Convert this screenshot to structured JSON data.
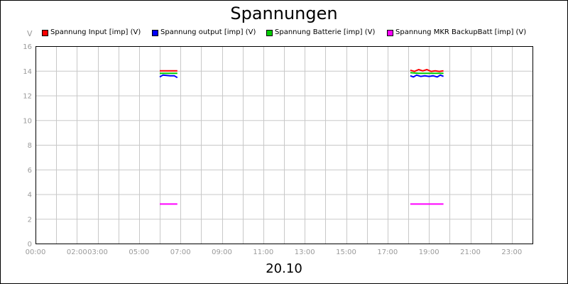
{
  "chart_data": {
    "type": "line",
    "title": "Spannungen",
    "ylabel": "V",
    "xlabel": "20.10",
    "ylim": [
      0,
      16
    ],
    "xlim_hours": [
      0,
      24
    ],
    "grid": true,
    "legend_position": "top",
    "y_ticks": [
      "0",
      "2",
      "4",
      "6",
      "8",
      "10",
      "12",
      "14",
      "16"
    ],
    "x_ticks": [
      {
        "label": "00:00",
        "hour": 0
      },
      {
        "label": "02:00",
        "hour": 2
      },
      {
        "label": "03:00",
        "hour": 3
      },
      {
        "label": "05:00",
        "hour": 5
      },
      {
        "label": "07:00",
        "hour": 7
      },
      {
        "label": "09:00",
        "hour": 9
      },
      {
        "label": "11:00",
        "hour": 11
      },
      {
        "label": "13:00",
        "hour": 13
      },
      {
        "label": "15:00",
        "hour": 15
      },
      {
        "label": "17:00",
        "hour": 17
      },
      {
        "label": "19:00",
        "hour": 19
      },
      {
        "label": "21:00",
        "hour": 21
      },
      {
        "label": "23:00",
        "hour": 23
      }
    ],
    "x_gridlines_hours": [
      1,
      2,
      3,
      4,
      5,
      6,
      7,
      8,
      9,
      10,
      11,
      12,
      13,
      14,
      15,
      16,
      17,
      18,
      19,
      20,
      21,
      22,
      23
    ],
    "series": [
      {
        "name": "Spannung Input [imp] (V)",
        "color": "#ff0000",
        "segments": [
          [
            [
              6.0,
              14.0
            ],
            [
              6.4,
              14.0
            ],
            [
              6.85,
              14.0
            ]
          ],
          [
            [
              18.1,
              14.05
            ],
            [
              18.3,
              13.95
            ],
            [
              18.5,
              14.1
            ],
            [
              18.7,
              14.0
            ],
            [
              18.9,
              14.1
            ],
            [
              19.1,
              13.95
            ],
            [
              19.3,
              14.0
            ],
            [
              19.5,
              13.95
            ],
            [
              19.7,
              14.0
            ]
          ]
        ]
      },
      {
        "name": "Spannung output [imp] (V)",
        "color": "#0000ff",
        "segments": [
          [
            [
              6.0,
              13.5
            ],
            [
              6.15,
              13.65
            ],
            [
              6.5,
              13.6
            ],
            [
              6.7,
              13.6
            ],
            [
              6.85,
              13.45
            ]
          ],
          [
            [
              18.1,
              13.6
            ],
            [
              18.25,
              13.5
            ],
            [
              18.4,
              13.65
            ],
            [
              18.6,
              13.55
            ],
            [
              18.8,
              13.6
            ],
            [
              19.0,
              13.55
            ],
            [
              19.2,
              13.6
            ],
            [
              19.4,
              13.5
            ],
            [
              19.55,
              13.65
            ],
            [
              19.7,
              13.55
            ]
          ]
        ]
      },
      {
        "name": "Spannung Batterie [imp] (V)",
        "color": "#00cc00",
        "segments": [
          [
            [
              6.0,
              13.8
            ],
            [
              6.85,
              13.8
            ]
          ],
          [
            [
              18.1,
              13.85
            ],
            [
              18.5,
              13.8
            ],
            [
              19.0,
              13.8
            ],
            [
              19.7,
              13.8
            ]
          ]
        ]
      },
      {
        "name": "Spannung MKR BackupBatt [imp] (V)",
        "color": "#ff00ff",
        "segments": [
          [
            [
              6.0,
              3.2
            ],
            [
              6.85,
              3.2
            ]
          ],
          [
            [
              18.1,
              3.2
            ],
            [
              19.7,
              3.2
            ]
          ]
        ]
      }
    ]
  }
}
